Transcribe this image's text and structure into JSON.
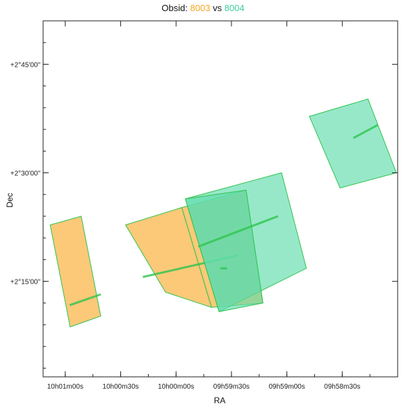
{
  "title": {
    "prefix": "Obsid: ",
    "obsid_a": "8003",
    "separator": " vs ",
    "obsid_b": "8004"
  },
  "colors": {
    "obsid_a": "#f5a623",
    "obsid_b": "#3ecf9a",
    "orange_fill": "#fcbf62",
    "green_fill": "#5fdcac",
    "outline": "#2ec44d"
  },
  "chart_data": {
    "type": "scatter",
    "xlabel": "RA",
    "ylabel": "Dec",
    "x_ticks": [
      "10h01m00s",
      "10h00m30s",
      "10h00m00s",
      "09h59m30s",
      "09h59m00s",
      "09h58m30s"
    ],
    "y_ticks": [
      "+2°15'00\"",
      "+2°30'00\"",
      "+2°45'00\""
    ],
    "x_tick_values": [
      150.25,
      150.125,
      150.0,
      149.875,
      149.75,
      149.625
    ],
    "y_tick_values": [
      2.25,
      2.5,
      2.75
    ],
    "xlim": [
      150.3,
      149.5
    ],
    "ylim": [
      2.03,
      2.85
    ],
    "series": [
      {
        "name": "8003",
        "color": "#fcbf62",
        "polygons": [
          [
            [
              150.284,
              2.38
            ],
            [
              150.214,
              2.4
            ],
            [
              150.17,
              2.17
            ],
            [
              150.239,
              2.145
            ]
          ],
          [
            [
              150.114,
              2.38
            ],
            [
              149.987,
              2.42
            ],
            [
              149.92,
              2.19
            ],
            [
              150.024,
              2.225
            ]
          ],
          [
            [
              149.987,
              2.42
            ],
            [
              149.842,
              2.46
            ],
            [
              149.804,
              2.2
            ],
            [
              149.92,
              2.19
            ]
          ]
        ],
        "center_lines": [
          [
            [
              150.24,
              2.195
            ],
            [
              150.17,
              2.22
            ]
          ],
          [
            [
              150.075,
              2.26
            ],
            [
              149.86,
              2.31
            ]
          ]
        ]
      },
      {
        "name": "8004",
        "color": "#5fdcac",
        "polygons": [
          [
            [
              149.979,
              2.44
            ],
            [
              149.762,
              2.5
            ],
            [
              149.706,
              2.28
            ],
            [
              149.903,
              2.18
            ]
          ],
          [
            [
              149.699,
              2.63
            ],
            [
              149.567,
              2.67
            ],
            [
              149.503,
              2.5
            ],
            [
              149.63,
              2.465
            ]
          ],
          [
            [
              149.842,
              2.46
            ],
            [
              149.804,
              2.2
            ],
            [
              149.903,
              2.18
            ],
            [
              149.979,
              2.44
            ]
          ]
        ],
        "center_lines": [
          [
            [
              149.95,
              2.33
            ],
            [
              149.77,
              2.4
            ]
          ],
          [
            [
              149.6,
              2.58
            ],
            [
              149.545,
              2.61
            ]
          ],
          [
            [
              149.9,
              2.28
            ],
            [
              149.885,
              2.28
            ]
          ]
        ]
      }
    ]
  }
}
